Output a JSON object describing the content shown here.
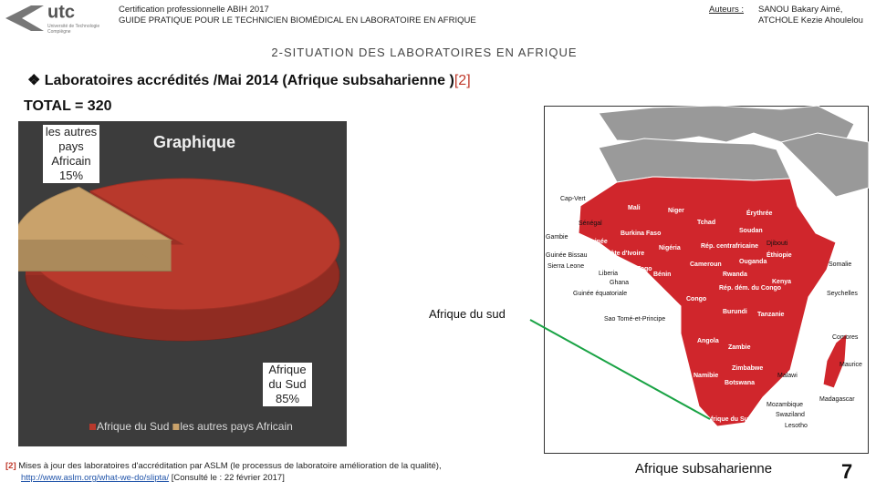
{
  "header": {
    "logo": "utc",
    "institution": "Université de Technologie Compiègne",
    "line1": "Certification professionnelle ABIH 2017",
    "line2": "GUIDE PRATIQUE POUR LE TECHNICIEN BIOMÉDICAL EN LABORATOIRE EN AFRIQUE",
    "authors_label": "Auteurs :",
    "authors": [
      "SANOU Bakary Aimé,",
      "ATCHOLE Kezie Ahoulelou"
    ]
  },
  "section": "2-SITUATION DES LABORATOIRES EN AFRIQUE",
  "heading": {
    "text": "Laboratoires accrédités /Mai 2014 (Afrique subsaharienne )",
    "ref": "[2]"
  },
  "total": "TOTAL = 320",
  "chart_data": {
    "type": "pie",
    "title": "Graphique",
    "categories": [
      "Afrique du Sud",
      "les autres pays Africain"
    ],
    "values": [
      85,
      15
    ],
    "value_labels": [
      "85%",
      "15%"
    ],
    "colors": [
      "#b8392c",
      "#c9a26b"
    ]
  },
  "callout": "Afrique du sud",
  "map": {
    "labels": [
      "Cap-Vert",
      "Mali",
      "Niger",
      "Érythrée",
      "Sénégal",
      "Tchad",
      "Soudan",
      "Gambie",
      "Burkina Faso",
      "Guinée",
      "Djibouti",
      "Guinée Bissau",
      "Côte d'Ivoire",
      "Nigéria",
      "Rép. centrafricaine",
      "Éthiopie",
      "Sierra Leone",
      "Liberia",
      "Togo",
      "Bénin",
      "Cameroun",
      "Ouganda",
      "Somalie",
      "Ghana",
      "Rwanda",
      "Kenya",
      "Guinée équatoriale",
      "Rép. dém. du Congo",
      "Gabon",
      "Congo",
      "Seychelles",
      "Burundi",
      "Tanzanie",
      "Sao Tomé-et-Principe",
      "Angola",
      "Comores",
      "Zambie",
      "Maurice",
      "Zimbabwe",
      "Malawi",
      "Namibie",
      "Botswana",
      "Madagascar",
      "Mozambique",
      "Swaziland",
      "Afrique du Sud",
      "Lesotho"
    ],
    "caption": "Afrique subsaharienne"
  },
  "footnote": {
    "ref": "[2]",
    "text": "Mises à jour des laboratoires d'accréditation par ASLM (le processus de laboratoire amélioration de la qualité),",
    "link": "http://www.aslm.org/what-we-do/slipta/",
    "after": "[Consulté le : 22 février 2017]"
  },
  "page": "7"
}
